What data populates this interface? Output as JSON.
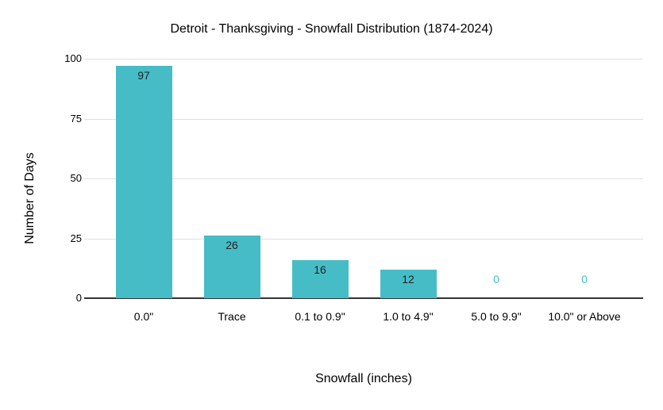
{
  "chart_data": {
    "type": "bar",
    "title": "Detroit - Thanksgiving - Snowfall Distribution (1874-2024)",
    "xlabel": "Snowfall (inches)",
    "ylabel": "Number of Days",
    "categories": [
      "0.0\"",
      "Trace",
      "0.1 to 0.9\"",
      "1.0 to 4.9\"",
      "5.0 to 9.9\"",
      "10.0\" or Above"
    ],
    "values": [
      97,
      26,
      16,
      12,
      0,
      0
    ],
    "yticks": [
      0,
      25,
      50,
      75,
      100
    ],
    "ylim": [
      0,
      100
    ],
    "grid": true,
    "legend": "none",
    "background": "#FFFFFF",
    "bar_color": "#46BDC6",
    "annotation_color_nonzero": "#212121",
    "annotation_color_zero": "#46BDC6",
    "gridline_color": "#E0E0E0",
    "axis_line_color": "#333333"
  }
}
